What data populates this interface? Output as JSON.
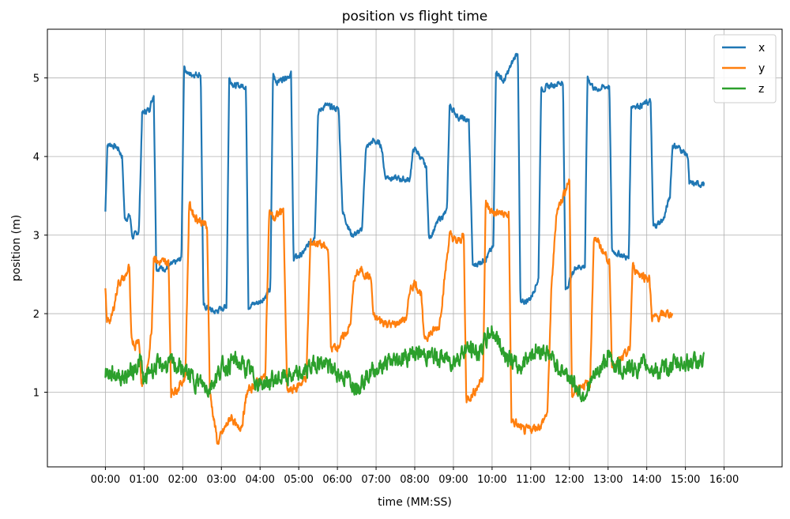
{
  "chart_data": {
    "type": "line",
    "title": "position vs flight time",
    "xlabel": "time (MM:SS)",
    "ylabel": "position (m)",
    "x_unit": "seconds",
    "xlim": [
      -90,
      1050
    ],
    "ylim": [
      0.05,
      5.62
    ],
    "x_ticks": [
      0,
      60,
      120,
      180,
      240,
      300,
      360,
      420,
      480,
      540,
      600,
      660,
      720,
      780,
      840,
      900,
      960
    ],
    "x_tick_labels": [
      "00:00",
      "01:00",
      "02:00",
      "03:00",
      "04:00",
      "05:00",
      "06:00",
      "07:00",
      "08:00",
      "09:00",
      "10:00",
      "11:00",
      "12:00",
      "13:00",
      "14:00",
      "15:00",
      "16:00"
    ],
    "y_ticks": [
      1,
      2,
      3,
      4,
      5
    ],
    "y_tick_labels": [
      "1",
      "2",
      "3",
      "4",
      "5"
    ],
    "grid": true,
    "legend": "top-right",
    "series": [
      {
        "name": "x",
        "color": "#1f77b4",
        "noise": 0.03,
        "points": [
          [
            0,
            3.3
          ],
          [
            3,
            4.15
          ],
          [
            10,
            4.15
          ],
          [
            20,
            4.1
          ],
          [
            26,
            4.0
          ],
          [
            30,
            3.2
          ],
          [
            38,
            3.25
          ],
          [
            42,
            2.97
          ],
          [
            52,
            3.05
          ],
          [
            57,
            4.55
          ],
          [
            68,
            4.6
          ],
          [
            75,
            4.8
          ],
          [
            79,
            2.58
          ],
          [
            95,
            2.58
          ],
          [
            118,
            2.7
          ],
          [
            122,
            5.15
          ],
          [
            128,
            5.05
          ],
          [
            148,
            5.05
          ],
          [
            152,
            2.1
          ],
          [
            170,
            2.02
          ],
          [
            188,
            2.1
          ],
          [
            192,
            5.0
          ],
          [
            200,
            4.9
          ],
          [
            218,
            4.9
          ],
          [
            222,
            2.1
          ],
          [
            240,
            2.15
          ],
          [
            256,
            2.3
          ],
          [
            260,
            5.05
          ],
          [
            266,
            4.95
          ],
          [
            288,
            5.05
          ],
          [
            292,
            2.7
          ],
          [
            305,
            2.75
          ],
          [
            325,
            3.0
          ],
          [
            330,
            4.55
          ],
          [
            340,
            4.65
          ],
          [
            362,
            4.6
          ],
          [
            368,
            3.3
          ],
          [
            382,
            3.0
          ],
          [
            398,
            3.05
          ],
          [
            404,
            4.1
          ],
          [
            415,
            4.2
          ],
          [
            428,
            4.15
          ],
          [
            434,
            3.75
          ],
          [
            450,
            3.72
          ],
          [
            472,
            3.7
          ],
          [
            478,
            4.1
          ],
          [
            485,
            4.05
          ],
          [
            498,
            3.85
          ],
          [
            502,
            2.95
          ],
          [
            518,
            3.2
          ],
          [
            530,
            3.3
          ],
          [
            534,
            4.65
          ],
          [
            548,
            4.5
          ],
          [
            564,
            4.45
          ],
          [
            570,
            2.6
          ],
          [
            590,
            2.7
          ],
          [
            602,
            2.85
          ],
          [
            606,
            5.1
          ],
          [
            618,
            4.95
          ],
          [
            640,
            5.35
          ],
          [
            644,
            2.12
          ],
          [
            660,
            2.2
          ],
          [
            672,
            2.45
          ],
          [
            676,
            4.85
          ],
          [
            690,
            4.9
          ],
          [
            710,
            4.95
          ],
          [
            714,
            2.3
          ],
          [
            730,
            2.6
          ],
          [
            744,
            2.6
          ],
          [
            748,
            5.0
          ],
          [
            760,
            4.85
          ],
          [
            782,
            4.9
          ],
          [
            786,
            2.8
          ],
          [
            800,
            2.75
          ],
          [
            812,
            2.7
          ],
          [
            816,
            4.65
          ],
          [
            830,
            4.65
          ],
          [
            846,
            4.7
          ],
          [
            850,
            3.1
          ],
          [
            866,
            3.2
          ],
          [
            876,
            3.5
          ],
          [
            880,
            4.15
          ],
          [
            892,
            4.1
          ],
          [
            904,
            4.0
          ],
          [
            906,
            3.65
          ],
          [
            930,
            3.65
          ]
        ]
      },
      {
        "name": "y",
        "color": "#ff7f0e",
        "noise": 0.045,
        "points": [
          [
            0,
            2.3
          ],
          [
            2,
            1.9
          ],
          [
            10,
            1.95
          ],
          [
            20,
            2.4
          ],
          [
            30,
            2.45
          ],
          [
            37,
            2.6
          ],
          [
            40,
            1.7
          ],
          [
            46,
            1.6
          ],
          [
            52,
            1.7
          ],
          [
            56,
            1.1
          ],
          [
            64,
            1.2
          ],
          [
            72,
            1.85
          ],
          [
            75,
            2.75
          ],
          [
            82,
            2.65
          ],
          [
            98,
            2.65
          ],
          [
            102,
            1.0
          ],
          [
            112,
            1.05
          ],
          [
            124,
            1.2
          ],
          [
            130,
            3.4
          ],
          [
            138,
            3.25
          ],
          [
            158,
            3.1
          ],
          [
            162,
            1.0
          ],
          [
            174,
            0.35
          ],
          [
            186,
            0.55
          ],
          [
            196,
            0.7
          ],
          [
            205,
            0.52
          ],
          [
            212,
            0.6
          ],
          [
            220,
            1.0
          ],
          [
            232,
            1.1
          ],
          [
            248,
            1.2
          ],
          [
            254,
            3.3
          ],
          [
            262,
            3.2
          ],
          [
            276,
            3.35
          ],
          [
            282,
            1.0
          ],
          [
            296,
            1.05
          ],
          [
            312,
            1.2
          ],
          [
            318,
            2.9
          ],
          [
            330,
            2.9
          ],
          [
            346,
            2.8
          ],
          [
            350,
            1.55
          ],
          [
            362,
            1.6
          ],
          [
            380,
            1.85
          ],
          [
            386,
            2.45
          ],
          [
            396,
            2.55
          ],
          [
            412,
            2.45
          ],
          [
            416,
            1.95
          ],
          [
            430,
            1.9
          ],
          [
            446,
            1.85
          ],
          [
            468,
            1.95
          ],
          [
            472,
            2.3
          ],
          [
            480,
            2.4
          ],
          [
            490,
            2.25
          ],
          [
            494,
            1.7
          ],
          [
            506,
            1.75
          ],
          [
            518,
            1.85
          ],
          [
            534,
            3.0
          ],
          [
            546,
            2.9
          ],
          [
            556,
            3.0
          ],
          [
            560,
            0.9
          ],
          [
            572,
            1.0
          ],
          [
            586,
            1.2
          ],
          [
            590,
            3.4
          ],
          [
            598,
            3.3
          ],
          [
            626,
            3.25
          ],
          [
            630,
            0.65
          ],
          [
            650,
            0.5
          ],
          [
            676,
            0.58
          ],
          [
            686,
            0.75
          ],
          [
            692,
            2.3
          ],
          [
            700,
            3.3
          ],
          [
            710,
            3.5
          ],
          [
            720,
            3.7
          ],
          [
            724,
            0.95
          ],
          [
            738,
            1.1
          ],
          [
            752,
            1.1
          ],
          [
            758,
            3.0
          ],
          [
            768,
            2.85
          ],
          [
            780,
            2.7
          ],
          [
            782,
            2.65
          ],
          [
            786,
            1.35
          ],
          [
            800,
            1.4
          ],
          [
            814,
            1.55
          ],
          [
            818,
            2.6
          ],
          [
            830,
            2.5
          ],
          [
            844,
            2.45
          ],
          [
            848,
            1.95
          ],
          [
            858,
            1.95
          ],
          [
            868,
            2.0
          ],
          [
            880,
            2.0
          ]
        ]
      },
      {
        "name": "z",
        "color": "#2ca02c",
        "noise": 0.09,
        "points": [
          [
            0,
            1.25
          ],
          [
            30,
            1.2
          ],
          [
            45,
            1.3
          ],
          [
            55,
            1.4
          ],
          [
            60,
            1.1
          ],
          [
            70,
            1.3
          ],
          [
            90,
            1.35
          ],
          [
            110,
            1.35
          ],
          [
            140,
            1.15
          ],
          [
            160,
            1.05
          ],
          [
            180,
            1.3
          ],
          [
            200,
            1.4
          ],
          [
            220,
            1.3
          ],
          [
            240,
            1.1
          ],
          [
            260,
            1.15
          ],
          [
            280,
            1.2
          ],
          [
            300,
            1.2
          ],
          [
            330,
            1.4
          ],
          [
            360,
            1.25
          ],
          [
            390,
            1.1
          ],
          [
            420,
            1.3
          ],
          [
            450,
            1.4
          ],
          [
            480,
            1.5
          ],
          [
            510,
            1.45
          ],
          [
            540,
            1.4
          ],
          [
            560,
            1.55
          ],
          [
            580,
            1.5
          ],
          [
            600,
            1.8
          ],
          [
            620,
            1.5
          ],
          [
            640,
            1.3
          ],
          [
            660,
            1.5
          ],
          [
            680,
            1.55
          ],
          [
            700,
            1.35
          ],
          [
            720,
            1.2
          ],
          [
            740,
            0.95
          ],
          [
            760,
            1.2
          ],
          [
            780,
            1.45
          ],
          [
            800,
            1.3
          ],
          [
            820,
            1.3
          ],
          [
            840,
            1.35
          ],
          [
            860,
            1.25
          ],
          [
            880,
            1.35
          ],
          [
            900,
            1.38
          ],
          [
            930,
            1.38
          ]
        ]
      }
    ]
  }
}
